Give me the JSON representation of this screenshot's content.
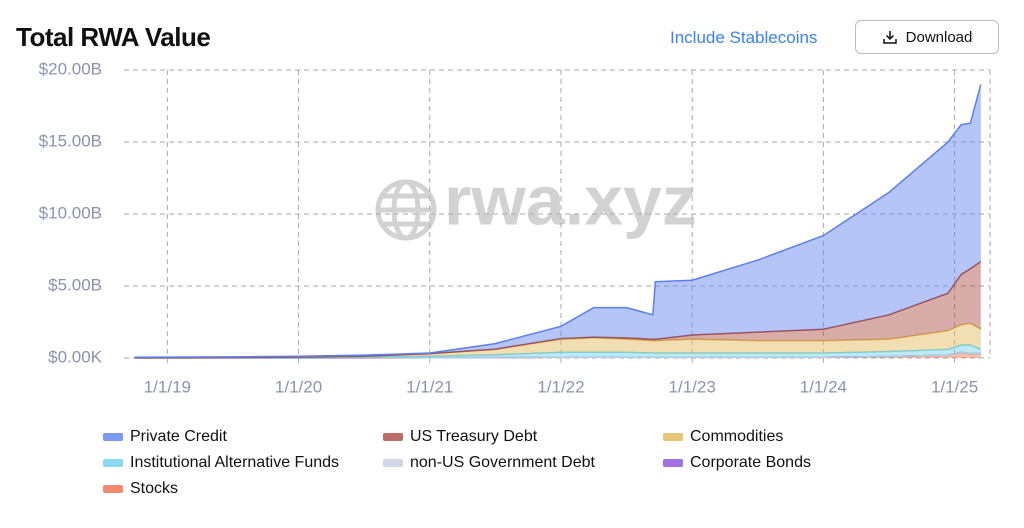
{
  "header": {
    "title": "Total RWA Value",
    "toggle": "Include Stablecoins",
    "download": "Download"
  },
  "chart_data": {
    "type": "area",
    "stacked": true,
    "watermark": "rwa.xyz",
    "grid": true,
    "xlim": [
      2018.7,
      2025.27
    ],
    "ylim": [
      0,
      20
    ],
    "xticks": [
      {
        "value": 2019,
        "label": "1/1/19"
      },
      {
        "value": 2020,
        "label": "1/1/20"
      },
      {
        "value": 2021,
        "label": "1/1/21"
      },
      {
        "value": 2022,
        "label": "1/1/22"
      },
      {
        "value": 2023,
        "label": "1/1/23"
      },
      {
        "value": 2024,
        "label": "1/1/24"
      },
      {
        "value": 2025,
        "label": "1/1/25"
      }
    ],
    "yticks": [
      {
        "value": 0,
        "label": "$0.00K"
      },
      {
        "value": 5,
        "label": "$5.00B"
      },
      {
        "value": 10,
        "label": "$10.00B"
      },
      {
        "value": 15,
        "label": "$15.00B"
      },
      {
        "value": 20,
        "label": "$20.00B"
      }
    ],
    "x": [
      2018.75,
      2019.5,
      2020,
      2020.5,
      2021,
      2021.5,
      2022,
      2022.25,
      2022.5,
      2022.7,
      2022.72,
      2023,
      2023.5,
      2024,
      2024.5,
      2024.95,
      2025.05,
      2025.12,
      2025.2
    ],
    "series": [
      {
        "name": "Private Credit",
        "color": "#5b7ff0",
        "values": [
          0.03,
          0.04,
          0.06,
          0.08,
          0.05,
          0.38,
          0.85,
          2.05,
          2.1,
          1.7,
          4.0,
          3.8,
          5.0,
          6.5,
          8.5,
          10.5,
          10.4,
          10.1,
          12.3
        ]
      },
      {
        "name": "US Treasury Debt",
        "color": "#a94a3f",
        "values": [
          0,
          0,
          0,
          0,
          0,
          0.02,
          0.05,
          0.05,
          0.1,
          0.1,
          0.1,
          0.3,
          0.6,
          0.8,
          1.7,
          2.6,
          3.5,
          3.8,
          4.7
        ]
      },
      {
        "name": "Commodities",
        "color": "#e0b757",
        "values": [
          0.01,
          0.02,
          0.03,
          0.07,
          0.18,
          0.37,
          0.9,
          1.0,
          0.9,
          0.85,
          0.85,
          0.95,
          0.85,
          0.85,
          0.85,
          1.3,
          1.4,
          1.5,
          1.4
        ]
      },
      {
        "name": "Institutional Alternative Funds",
        "color": "#6dd0ea",
        "values": [
          0.01,
          0.02,
          0.03,
          0.05,
          0.1,
          0.2,
          0.35,
          0.35,
          0.35,
          0.3,
          0.3,
          0.3,
          0.3,
          0.3,
          0.35,
          0.4,
          0.5,
          0.6,
          0.3
        ]
      },
      {
        "name": "non-US Government Debt",
        "color": "#c3cde0",
        "values": [
          0,
          0,
          0,
          0,
          0,
          0,
          0,
          0,
          0,
          0,
          0,
          0,
          0,
          0,
          0,
          0,
          0,
          0,
          0
        ]
      },
      {
        "name": "Corporate Bonds",
        "color": "#8a4fd6",
        "values": [
          0,
          0,
          0,
          0,
          0,
          0,
          0,
          0,
          0,
          0,
          0,
          0,
          0,
          0,
          0,
          0,
          0,
          0,
          0
        ]
      },
      {
        "name": "Stocks",
        "color": "#ef6a4a",
        "values": [
          0,
          0,
          0,
          0,
          0.02,
          0.03,
          0.05,
          0.05,
          0.05,
          0.05,
          0.05,
          0.05,
          0.05,
          0.05,
          0.1,
          0.2,
          0.4,
          0.3,
          0.3
        ]
      }
    ]
  }
}
